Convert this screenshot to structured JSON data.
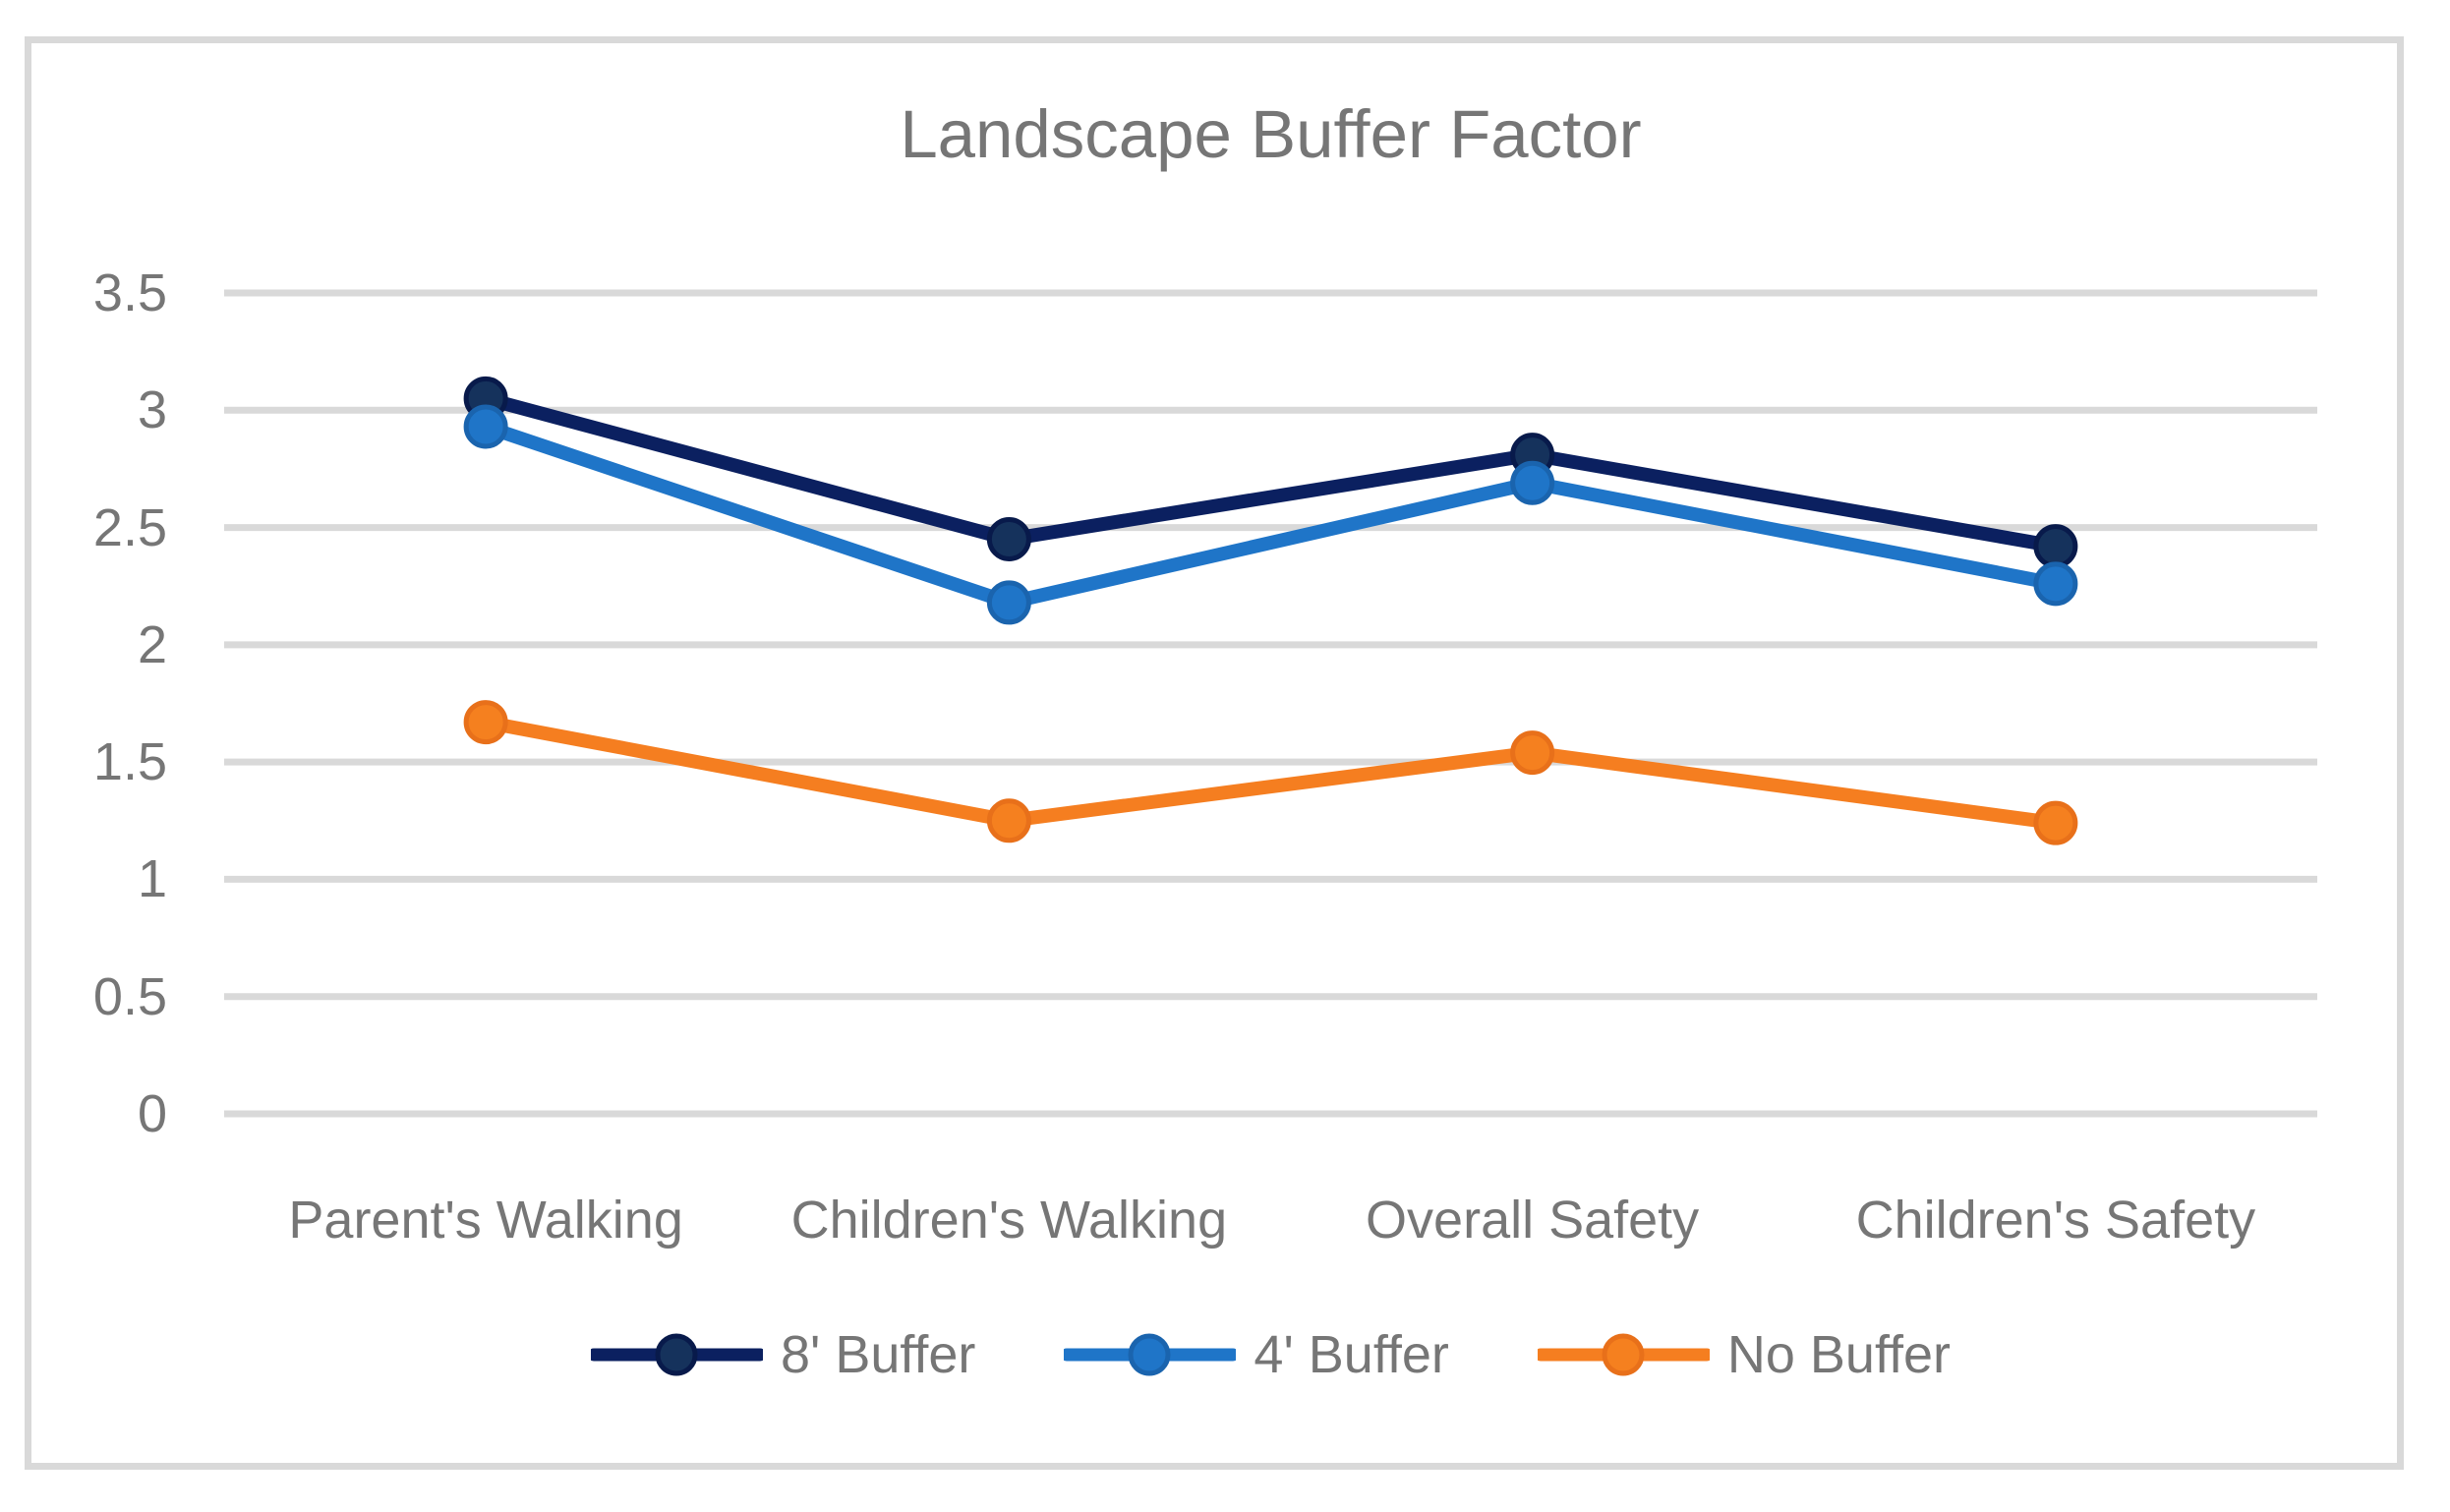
{
  "chart_data": {
    "type": "line",
    "title": "Landscape Buffer Factor",
    "categories": [
      "Parent's Walking",
      "Children's Walking",
      "Overall Safety",
      "Children's Safety"
    ],
    "series": [
      {
        "name": "8' Buffer",
        "line_color": "#0B2060",
        "marker_fill": "#15325C",
        "marker_rim": "#081A4B",
        "values": [
          3.05,
          2.45,
          2.81,
          2.42
        ]
      },
      {
        "name": "4' Buffer",
        "line_color": "#1F75C8",
        "marker_fill": "#1F75C8",
        "marker_rim": "#1A64AE",
        "values": [
          2.93,
          2.18,
          2.69,
          2.26
        ]
      },
      {
        "name": "No Buffer",
        "line_color": "#F57E20",
        "marker_fill": "#F5801F",
        "marker_rim": "#E8701A",
        "values": [
          1.67,
          1.25,
          1.54,
          1.24
        ]
      }
    ],
    "y_ticks": [
      3.5,
      3,
      2.5,
      2,
      1.5,
      1,
      0.5,
      0
    ],
    "ylim": [
      0,
      3.5
    ],
    "grid": true,
    "legend_position": "bottom",
    "text_color": "#767676",
    "gridline_color": "#D9D9D9",
    "frame_border_color": "#D9D9D9",
    "xlabel": "",
    "ylabel": ""
  }
}
